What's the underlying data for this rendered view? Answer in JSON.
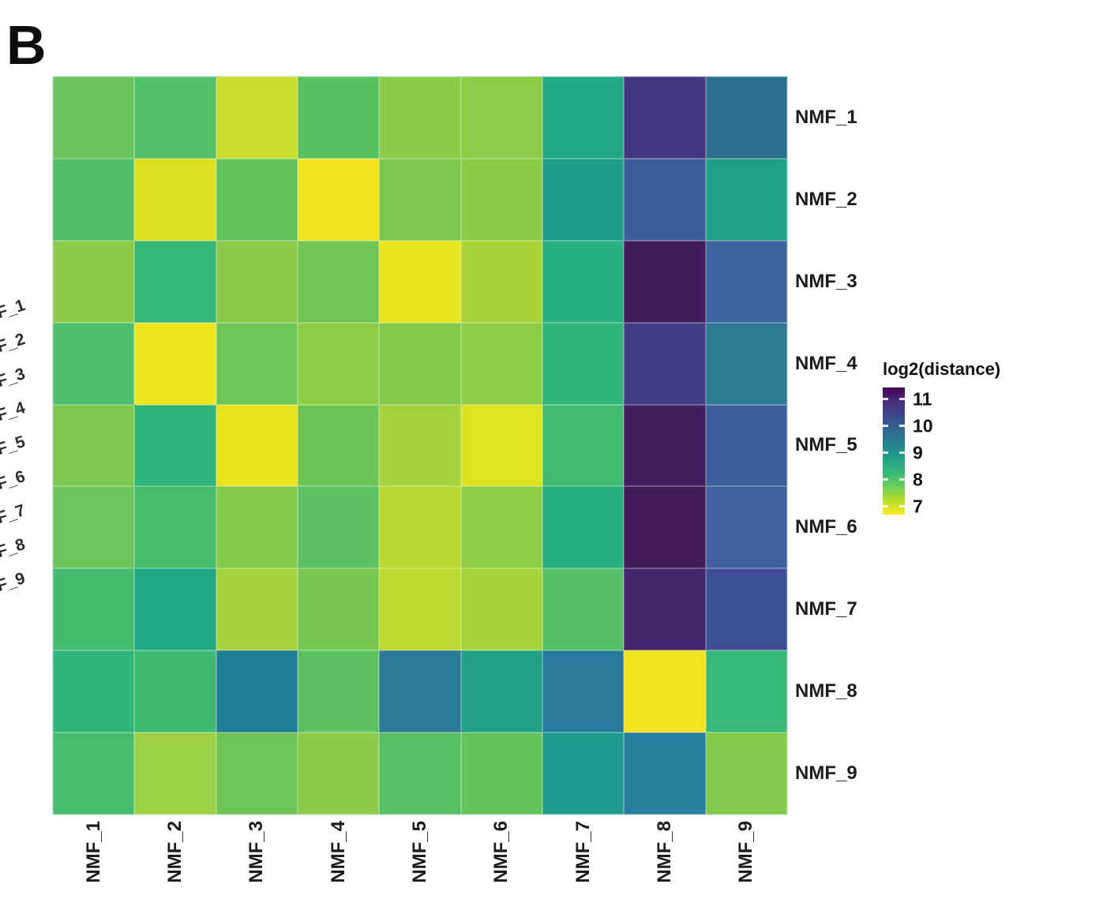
{
  "panel_label": "B",
  "chart_data": {
    "type": "heatmap",
    "title": "",
    "columns": [
      "NMF_1",
      "NMF_2",
      "NMF_3",
      "NMF_4",
      "NMF_5",
      "NMF_6",
      "NMF_7",
      "NMF_8",
      "NMF_9"
    ],
    "rows": [
      "NMF_1",
      "NMF_2",
      "NMF_3",
      "NMF_4",
      "NMF_5",
      "NMF_6",
      "NMF_7",
      "NMF_8",
      "NMF_9"
    ],
    "values_log2_distance": [
      [
        8.2,
        8.4,
        7.6,
        8.4,
        8.0,
        8.0,
        9.0,
        10.8,
        10.0
      ],
      [
        8.4,
        7.3,
        8.3,
        7.0,
        8.1,
        8.0,
        9.2,
        10.2,
        9.1
      ],
      [
        8.0,
        8.7,
        8.0,
        8.2,
        7.1,
        7.8,
        9.0,
        11.3,
        10.1
      ],
      [
        8.4,
        7.0,
        8.2,
        8.0,
        8.0,
        8.0,
        8.8,
        10.7,
        9.9
      ],
      [
        8.1,
        8.8,
        7.1,
        8.2,
        7.8,
        7.4,
        8.5,
        11.2,
        10.3
      ],
      [
        8.2,
        8.5,
        8.0,
        8.4,
        7.6,
        8.0,
        9.0,
        11.3,
        10.1
      ],
      [
        8.5,
        9.0,
        7.8,
        8.1,
        7.6,
        7.8,
        8.4,
        11.1,
        10.5
      ],
      [
        8.8,
        8.6,
        9.8,
        8.4,
        9.9,
        9.1,
        9.8,
        7.0,
        8.7
      ],
      [
        8.5,
        7.9,
        8.2,
        8.0,
        8.4,
        8.3,
        9.2,
        9.8,
        8.0
      ]
    ],
    "cell_colors": [
      [
        "#6cc25b",
        "#52bf6a",
        "#c8dd2b",
        "#55c05f",
        "#8ccb4a",
        "#8ecb47",
        "#22a884",
        "#443680",
        "#2c6f8e"
      ],
      [
        "#50bf66",
        "#dbe122",
        "#64c35a",
        "#f2e41e",
        "#7cc84f",
        "#8bcb47",
        "#1f9d8a",
        "#3b5f99",
        "#1fa187"
      ],
      [
        "#8cca49",
        "#35b877",
        "#8cc948",
        "#71c553",
        "#e8e51c",
        "#a9d437",
        "#27ae81",
        "#401b5c",
        "#3c639e"
      ],
      [
        "#4cbe69",
        "#eee51d",
        "#6ec455",
        "#8fcc45",
        "#84ca4a",
        "#8fcc45",
        "#30b57a",
        "#413d84",
        "#2a7a93"
      ],
      [
        "#7cc750",
        "#2fb57c",
        "#e6e41d",
        "#6bc456",
        "#a3d23c",
        "#dde31e",
        "#44bc6f",
        "#411f5e",
        "#3c5e9a"
      ],
      [
        "#6dc45a",
        "#46bd6d",
        "#84ca4b",
        "#5cc161",
        "#b8d831",
        "#8fcc45",
        "#27ae80",
        "#411a58",
        "#41629e"
      ],
      [
        "#44bc6e",
        "#20a886",
        "#a4d23b",
        "#77c751",
        "#bcd92f",
        "#a5d33a",
        "#55c066",
        "#42256b",
        "#3f4f96"
      ],
      [
        "#2fb47a",
        "#3fba72",
        "#1f7d96",
        "#5cc160",
        "#2b7a97",
        "#22a083",
        "#28799b",
        "#f2e41e",
        "#38b977"
      ],
      [
        "#46bd6d",
        "#9ed046",
        "#6ec455",
        "#8ccb49",
        "#58c065",
        "#65c35b",
        "#1f9c8d",
        "#27809d",
        "#82ca4b"
      ]
    ],
    "legend": {
      "title": "log2(distance)",
      "tick_values": [
        11,
        10,
        9,
        8,
        7
      ],
      "bar_domain_top": 11.44,
      "bar_domain_bottom": 6.7,
      "colormap": "viridis",
      "gradient_stops": [
        "#440154",
        "#472d7b",
        "#3e4989",
        "#31688e",
        "#26828e",
        "#1f9e89",
        "#35b779",
        "#6ece58",
        "#b5de2b",
        "#fde725"
      ]
    },
    "left_cropped_labels": [
      "F_1",
      "F_2",
      "F_3",
      "F_4",
      "F_5",
      "F_6",
      "F_7",
      "F_8",
      "F_9"
    ],
    "layout_hints": {
      "grid": "off",
      "legend_position": "right",
      "x_tick_rotation": 90,
      "row_labels_side": "right"
    }
  }
}
